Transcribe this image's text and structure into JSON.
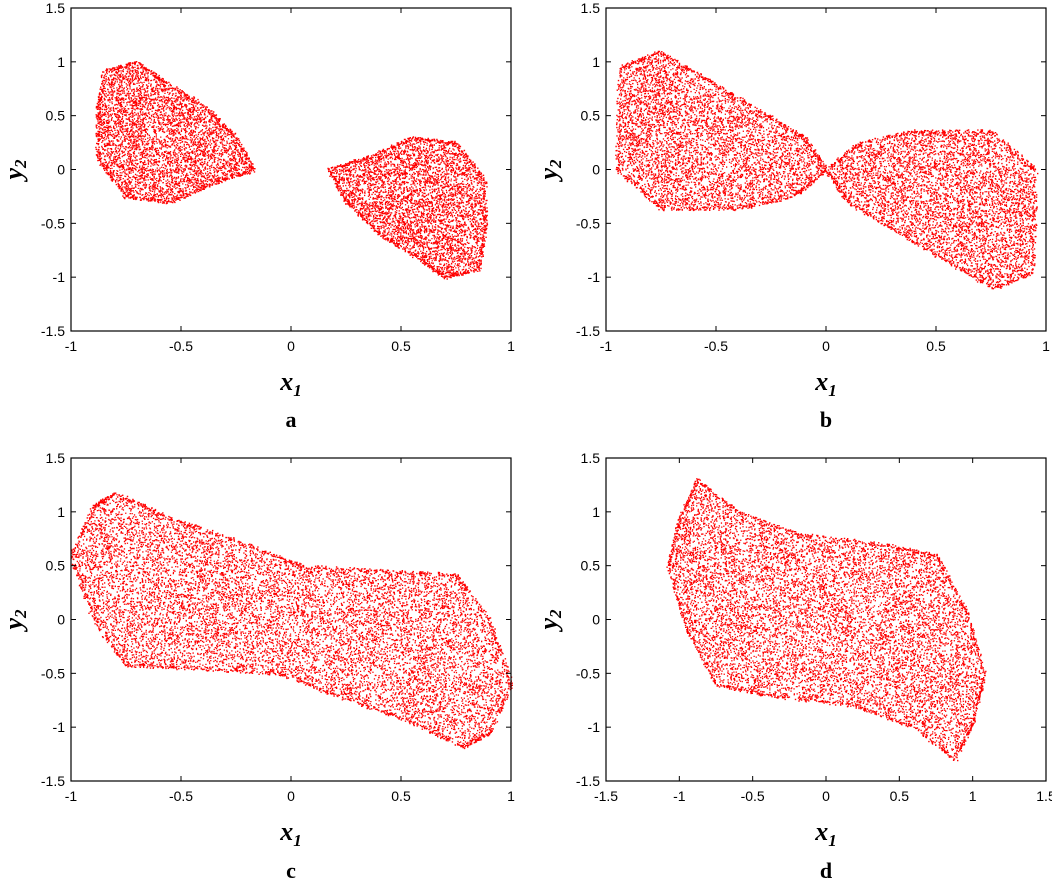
{
  "point_color": "#ff0000",
  "chart_data": [
    {
      "type": "scatter",
      "panel_label": "a",
      "xlabel_main": "x",
      "xlabel_sub": "1",
      "ylabel_main": "y",
      "ylabel_sub": "2",
      "xlim": [
        -1,
        1
      ],
      "ylim": [
        -1.5,
        1.5
      ],
      "xticks": [
        -1,
        -0.5,
        0,
        0.5,
        1
      ],
      "yticks": [
        -1.5,
        -1,
        -0.5,
        0,
        0.5,
        1,
        1.5
      ],
      "xtick_labels": [
        "-1",
        "-0.5",
        "0",
        "0.5",
        "1"
      ],
      "ytick_labels": [
        "-1.5",
        "-1",
        "-0.5",
        "0",
        "0.5",
        "1",
        "1.5"
      ],
      "grid": false,
      "series": [
        {
          "points": 4500,
          "region": [
            [
              -0.85,
              0.92
            ],
            [
              -0.7,
              1.0
            ],
            [
              -0.6,
              0.85
            ],
            [
              -0.4,
              0.6
            ],
            [
              -0.25,
              0.3
            ],
            [
              -0.17,
              0.0
            ],
            [
              -0.35,
              -0.12
            ],
            [
              -0.55,
              -0.3
            ],
            [
              -0.75,
              -0.25
            ],
            [
              -0.88,
              0.1
            ],
            [
              -0.88,
              0.55
            ]
          ]
        },
        {
          "points": 4500,
          "region": [
            [
              0.85,
              -0.92
            ],
            [
              0.7,
              -1.0
            ],
            [
              0.6,
              -0.85
            ],
            [
              0.4,
              -0.6
            ],
            [
              0.25,
              -0.3
            ],
            [
              0.17,
              0.0
            ],
            [
              0.35,
              0.12
            ],
            [
              0.55,
              0.3
            ],
            [
              0.75,
              0.25
            ],
            [
              0.88,
              -0.1
            ],
            [
              0.88,
              -0.55
            ]
          ]
        }
      ]
    },
    {
      "type": "scatter",
      "panel_label": "b",
      "xlabel_main": "x",
      "xlabel_sub": "1",
      "ylabel_main": "y",
      "ylabel_sub": "2",
      "xlim": [
        -1,
        1
      ],
      "ylim": [
        -1.5,
        1.5
      ],
      "xticks": [
        -1,
        -0.5,
        0,
        0.5,
        1
      ],
      "yticks": [
        -1.5,
        -1,
        -0.5,
        0,
        0.5,
        1,
        1.5
      ],
      "xtick_labels": [
        "-1",
        "-0.5",
        "0",
        "0.5",
        "1"
      ],
      "ytick_labels": [
        "-1.5",
        "-1",
        "-0.5",
        "0",
        "0.5",
        "1",
        "1.5"
      ],
      "grid": false,
      "series": [
        {
          "points": 5200,
          "region": [
            [
              -0.94,
              0.95
            ],
            [
              -0.76,
              1.1
            ],
            [
              -0.55,
              0.85
            ],
            [
              -0.3,
              0.55
            ],
            [
              -0.1,
              0.3
            ],
            [
              0.0,
              0.0
            ],
            [
              -0.15,
              -0.25
            ],
            [
              -0.4,
              -0.36
            ],
            [
              -0.75,
              -0.36
            ],
            [
              -0.95,
              0.0
            ]
          ]
        },
        {
          "points": 5200,
          "region": [
            [
              0.94,
              -0.95
            ],
            [
              0.76,
              -1.1
            ],
            [
              0.55,
              -0.85
            ],
            [
              0.3,
              -0.55
            ],
            [
              0.1,
              -0.3
            ],
            [
              0.0,
              0.0
            ],
            [
              0.15,
              0.25
            ],
            [
              0.4,
              0.36
            ],
            [
              0.75,
              0.36
            ],
            [
              0.95,
              0.0
            ]
          ]
        }
      ]
    },
    {
      "type": "scatter",
      "panel_label": "c",
      "xlabel_main": "x",
      "xlabel_sub": "1",
      "ylabel_main": "y",
      "ylabel_sub": "2",
      "xlim": [
        -1,
        1
      ],
      "ylim": [
        -1.5,
        1.5
      ],
      "xticks": [
        -1,
        -0.5,
        0,
        0.5,
        1
      ],
      "yticks": [
        -1.5,
        -1,
        -0.5,
        0,
        0.5,
        1,
        1.5
      ],
      "xtick_labels": [
        "-1",
        "-0.5",
        "0",
        "0.5",
        "1"
      ],
      "ytick_labels": [
        "-1.5",
        "-1",
        "-0.5",
        "0",
        "0.5",
        "1",
        "1.5"
      ],
      "grid": false,
      "series": [
        {
          "points": 11000,
          "region": [
            [
              -0.8,
              1.18
            ],
            [
              -0.55,
              0.95
            ],
            [
              -0.2,
              0.7
            ],
            [
              0.05,
              0.5
            ],
            [
              0.45,
              0.45
            ],
            [
              0.75,
              0.42
            ],
            [
              0.9,
              0.0
            ],
            [
              1.0,
              -0.6
            ],
            [
              0.9,
              -1.05
            ],
            [
              0.78,
              -1.18
            ],
            [
              0.55,
              -0.95
            ],
            [
              0.2,
              -0.7
            ],
            [
              -0.05,
              -0.5
            ],
            [
              -0.45,
              -0.45
            ],
            [
              -0.75,
              -0.42
            ],
            [
              -0.9,
              0.0
            ],
            [
              -1.0,
              0.6
            ],
            [
              -0.9,
              1.05
            ]
          ]
        }
      ]
    },
    {
      "type": "scatter",
      "panel_label": "d",
      "xlabel_main": "x",
      "xlabel_sub": "1",
      "ylabel_main": "y",
      "ylabel_sub": "2",
      "xlim": [
        -1.5,
        1.5
      ],
      "ylim": [
        -1.5,
        1.5
      ],
      "xticks": [
        -1.5,
        -1,
        -0.5,
        0,
        0.5,
        1,
        1.5
      ],
      "yticks": [
        -1.5,
        -1,
        -0.5,
        0,
        0.5,
        1,
        1.5
      ],
      "xtick_labels": [
        "-1.5",
        "-1",
        "-0.5",
        "0",
        "0.5",
        "1",
        "1.5"
      ],
      "ytick_labels": [
        "-1.5",
        "-1",
        "-0.5",
        "0",
        "0.5",
        "1",
        "1.5"
      ],
      "grid": false,
      "series": [
        {
          "points": 10000,
          "region": [
            [
              -0.88,
              1.3
            ],
            [
              -0.6,
              1.0
            ],
            [
              -0.2,
              0.8
            ],
            [
              0.4,
              0.7
            ],
            [
              0.75,
              0.6
            ],
            [
              0.95,
              0.1
            ],
            [
              1.08,
              -0.5
            ],
            [
              1.0,
              -0.95
            ],
            [
              0.88,
              -1.3
            ],
            [
              0.6,
              -1.0
            ],
            [
              0.2,
              -0.8
            ],
            [
              -0.4,
              -0.7
            ],
            [
              -0.75,
              -0.6
            ],
            [
              -0.95,
              -0.1
            ],
            [
              -1.08,
              0.5
            ],
            [
              -1.0,
              0.95
            ]
          ]
        }
      ]
    }
  ]
}
